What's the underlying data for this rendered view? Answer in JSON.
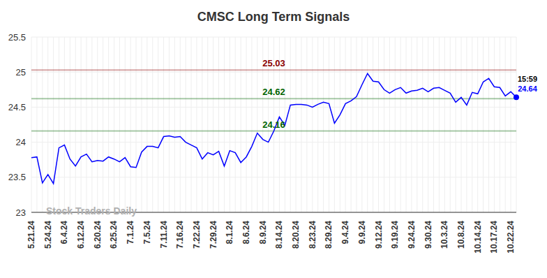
{
  "chart_data": {
    "type": "line",
    "title": "CMSC Long Term Signals",
    "watermark": "Stock Traders Daily",
    "categories": [
      "5.21.24",
      null,
      null,
      "5.24.24",
      null,
      null,
      "6.4.24",
      null,
      null,
      "6.12.24",
      null,
      null,
      "6.20.24",
      null,
      null,
      "6.25.24",
      null,
      null,
      "7.1.24",
      null,
      null,
      "7.5.24",
      null,
      null,
      "7.11.24",
      null,
      null,
      "7.16.24",
      null,
      null,
      "7.22.24",
      null,
      null,
      "7.29.24",
      null,
      null,
      "8.1.24",
      null,
      null,
      "8.6.24",
      null,
      null,
      "8.9.24",
      null,
      null,
      "8.14.24",
      null,
      null,
      "8.20.24",
      null,
      null,
      "8.23.24",
      null,
      null,
      "8.29.24",
      null,
      null,
      "9.4.24",
      null,
      null,
      "9.9.24",
      null,
      null,
      "9.12.24",
      null,
      null,
      "9.19.24",
      null,
      null,
      "9.24.24",
      null,
      null,
      "9.30.24",
      null,
      null,
      "10.3.24",
      null,
      null,
      "10.8.24",
      null,
      null,
      "10.14.24",
      null,
      null,
      "10.17.24",
      null,
      null,
      "10.22.24",
      null
    ],
    "values": [
      23.78,
      23.79,
      23.42,
      23.54,
      23.41,
      23.92,
      23.96,
      23.76,
      23.66,
      23.79,
      23.83,
      23.72,
      23.74,
      23.73,
      23.79,
      23.76,
      23.72,
      23.78,
      23.65,
      23.64,
      23.86,
      23.94,
      23.94,
      23.92,
      24.08,
      24.09,
      24.07,
      24.08,
      24.0,
      23.96,
      23.92,
      23.76,
      23.85,
      23.82,
      23.87,
      23.66,
      23.88,
      23.85,
      23.71,
      23.79,
      23.94,
      24.13,
      24.04,
      24.0,
      24.16,
      24.36,
      24.24,
      24.53,
      24.54,
      24.54,
      24.53,
      24.5,
      24.54,
      24.57,
      24.55,
      24.27,
      24.39,
      24.55,
      24.59,
      24.65,
      24.82,
      24.98,
      24.87,
      24.86,
      24.75,
      24.7,
      24.75,
      24.78,
      24.7,
      24.73,
      24.74,
      24.77,
      24.72,
      24.77,
      24.78,
      24.74,
      24.7,
      24.57,
      24.64,
      24.53,
      24.71,
      24.69,
      24.86,
      24.91,
      24.79,
      24.78,
      24.66,
      24.72,
      24.64
    ],
    "color": "#0000ff",
    "ylim": [
      23,
      25.5
    ],
    "yticks": [
      23,
      23.5,
      24,
      24.5,
      25,
      25.5
    ],
    "grid": true,
    "reference_lines": [
      {
        "value": 25.03,
        "label": "25.03",
        "color": "#8b0000"
      },
      {
        "value": 24.62,
        "label": "24.62",
        "color": "#006400"
      },
      {
        "value": 24.16,
        "label": "24.16",
        "color": "#006400"
      }
    ],
    "end_annotation": {
      "text": "15:59",
      "value": 24.64
    }
  }
}
